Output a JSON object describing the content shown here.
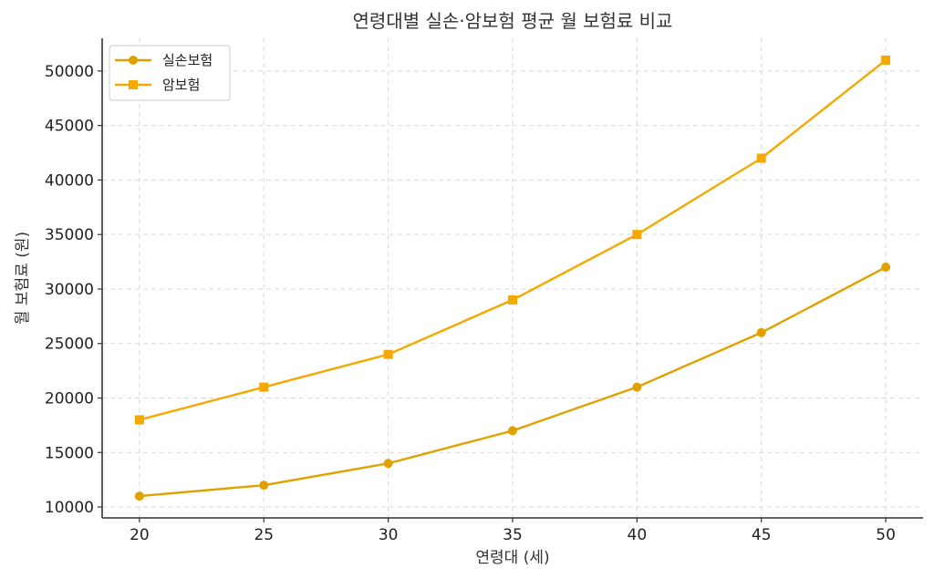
{
  "chart_data": {
    "type": "line",
    "title": "연령대별 실손·암보험 평균 월 보험료 비교",
    "xlabel": "연령대 (세)",
    "ylabel": "월 보험료 (원)",
    "x": [
      20,
      25,
      30,
      35,
      40,
      45,
      50
    ],
    "xticks": [
      "20",
      "25",
      "30",
      "35",
      "40",
      "45",
      "50"
    ],
    "xlim": [
      18.5,
      51.5
    ],
    "yticks": [
      "10000",
      "15000",
      "20000",
      "25000",
      "30000",
      "35000",
      "40000",
      "45000",
      "50000"
    ],
    "ylim": [
      9000,
      53000
    ],
    "grid": true,
    "legend_position": "top-left",
    "series": [
      {
        "name": "실손보험",
        "values": [
          11000,
          12000,
          14000,
          17000,
          21000,
          26000,
          32000
        ],
        "color": "#E0A100",
        "marker": "circle"
      },
      {
        "name": "암보험",
        "values": [
          18000,
          21000,
          24000,
          29000,
          35000,
          42000,
          51000
        ],
        "color": "#F5A800",
        "marker": "square"
      }
    ]
  }
}
